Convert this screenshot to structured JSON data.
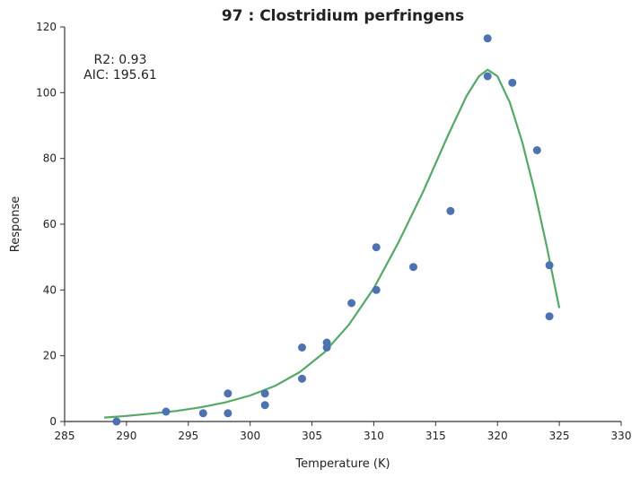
{
  "chart_data": {
    "type": "scatter",
    "title": "97 : Clostridium perfringens",
    "xlabel": "Temperature (K)",
    "ylabel": "Response",
    "xlim": [
      285,
      330
    ],
    "ylim": [
      0,
      120
    ],
    "x_ticks": [
      285,
      290,
      295,
      300,
      305,
      310,
      315,
      320,
      325,
      330
    ],
    "y_ticks": [
      0,
      20,
      40,
      60,
      80,
      100,
      120
    ],
    "annotations": [
      "R2: 0.93",
      "AIC: 195.61"
    ],
    "grid": false,
    "series": [
      {
        "type": "scatter",
        "color": "#4c72b0",
        "points": [
          [
            289.2,
            0.0
          ],
          [
            293.2,
            3.0
          ],
          [
            296.2,
            2.5
          ],
          [
            298.2,
            2.5
          ],
          [
            298.2,
            8.5
          ],
          [
            301.2,
            5.0
          ],
          [
            301.2,
            8.5
          ],
          [
            304.2,
            13.0
          ],
          [
            304.2,
            22.5
          ],
          [
            306.2,
            22.5
          ],
          [
            306.2,
            24.0
          ],
          [
            308.2,
            36.0
          ],
          [
            310.2,
            40.0
          ],
          [
            310.2,
            53.0
          ],
          [
            313.2,
            47.0
          ],
          [
            316.2,
            64.0
          ],
          [
            319.2,
            105.0
          ],
          [
            319.2,
            116.5
          ],
          [
            321.2,
            103.0
          ],
          [
            323.2,
            82.5
          ],
          [
            324.2,
            47.5
          ],
          [
            324.2,
            32.0
          ]
        ]
      },
      {
        "type": "line",
        "color": "#55a868",
        "points": [
          [
            288.2,
            1.2
          ],
          [
            290.0,
            1.7
          ],
          [
            292.0,
            2.4
          ],
          [
            294.0,
            3.2
          ],
          [
            296.0,
            4.3
          ],
          [
            298.0,
            5.8
          ],
          [
            300.0,
            7.9
          ],
          [
            302.0,
            10.8
          ],
          [
            304.0,
            15.0
          ],
          [
            306.0,
            21.0
          ],
          [
            308.0,
            29.5
          ],
          [
            310.0,
            40.5
          ],
          [
            312.0,
            54.5
          ],
          [
            314.0,
            70.0
          ],
          [
            316.0,
            87.0
          ],
          [
            317.5,
            99.0
          ],
          [
            318.5,
            105.0
          ],
          [
            319.2,
            107.0
          ],
          [
            320.0,
            105.0
          ],
          [
            321.0,
            97.0
          ],
          [
            322.0,
            85.0
          ],
          [
            323.0,
            70.0
          ],
          [
            324.0,
            53.0
          ],
          [
            325.0,
            34.5
          ]
        ]
      }
    ]
  }
}
